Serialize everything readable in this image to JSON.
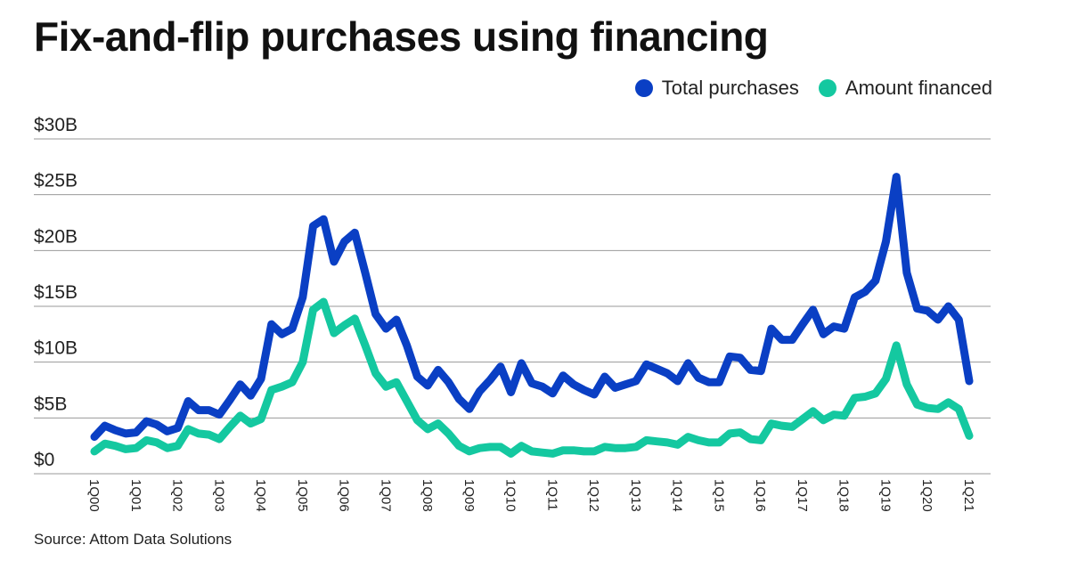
{
  "title": "Fix-and-flip purchases using financing",
  "source": "Source: Attom Data Solutions",
  "chart_data": {
    "type": "line",
    "title": "Fix-and-flip purchases using financing",
    "ylim": [
      0,
      30
    ],
    "yticks": [
      {
        "value": 0,
        "label": "$0"
      },
      {
        "value": 5,
        "label": "$5B"
      },
      {
        "value": 10,
        "label": "$10B"
      },
      {
        "value": 15,
        "label": "$15B"
      },
      {
        "value": 20,
        "label": "$20B"
      },
      {
        "value": 25,
        "label": "$25B"
      },
      {
        "value": 30,
        "label": "$30B"
      }
    ],
    "xtick_labels": [
      "1Q00",
      "1Q01",
      "1Q02",
      "1Q03",
      "1Q04",
      "1Q05",
      "1Q06",
      "1Q07",
      "1Q08",
      "1Q09",
      "1Q10",
      "1Q11",
      "1Q12",
      "1Q13",
      "1Q14",
      "1Q15",
      "1Q16",
      "1Q17",
      "1Q18",
      "1Q19",
      "1Q20",
      "1Q21"
    ],
    "grid": true,
    "legend_position": "top-right",
    "series": [
      {
        "name": "Total purchases",
        "color": "#0a3fc4",
        "values": [
          3.3,
          4.3,
          3.9,
          3.6,
          3.7,
          4.7,
          4.4,
          3.8,
          4.1,
          6.5,
          5.7,
          5.7,
          5.3,
          6.6,
          8.0,
          7.0,
          8.5,
          13.4,
          12.5,
          13.0,
          15.8,
          22.2,
          22.8,
          19.0,
          20.8,
          21.6,
          18.0,
          14.3,
          13.0,
          13.8,
          11.5,
          8.7,
          7.9,
          9.3,
          8.2,
          6.7,
          5.8,
          7.4,
          8.4,
          9.6,
          7.3,
          9.9,
          8.1,
          7.8,
          7.2,
          8.8,
          8.0,
          7.5,
          7.1,
          8.7,
          7.7,
          8.0,
          8.3,
          9.8,
          9.4,
          9.0,
          8.3,
          9.9,
          8.6,
          8.2,
          8.2,
          10.5,
          10.4,
          9.3,
          9.2,
          13.0,
          12.0,
          12.0,
          13.4,
          14.7,
          12.5,
          13.2,
          13.0,
          15.8,
          16.3,
          17.3,
          20.8,
          26.6,
          18.0,
          14.8,
          14.6,
          13.8,
          15.0,
          13.8,
          8.3
        ]
      },
      {
        "name": "Amount financed",
        "color": "#14c8a0",
        "values": [
          2.0,
          2.7,
          2.5,
          2.2,
          2.3,
          3.0,
          2.8,
          2.3,
          2.5,
          4.0,
          3.6,
          3.5,
          3.1,
          4.2,
          5.2,
          4.5,
          4.9,
          7.5,
          7.8,
          8.2,
          10.0,
          14.7,
          15.4,
          12.6,
          13.3,
          13.9,
          11.5,
          9.0,
          7.8,
          8.2,
          6.5,
          4.8,
          4.0,
          4.5,
          3.6,
          2.5,
          2.0,
          2.3,
          2.4,
          2.4,
          1.8,
          2.5,
          2.0,
          1.9,
          1.8,
          2.1,
          2.1,
          2.0,
          2.0,
          2.4,
          2.3,
          2.3,
          2.4,
          3.0,
          2.9,
          2.8,
          2.6,
          3.3,
          3.0,
          2.8,
          2.8,
          3.6,
          3.7,
          3.1,
          3.0,
          4.5,
          4.3,
          4.2,
          4.9,
          5.6,
          4.8,
          5.3,
          5.2,
          6.8,
          6.9,
          7.2,
          8.5,
          11.5,
          8.0,
          6.2,
          5.9,
          5.8,
          6.4,
          5.8,
          3.4
        ]
      }
    ]
  }
}
